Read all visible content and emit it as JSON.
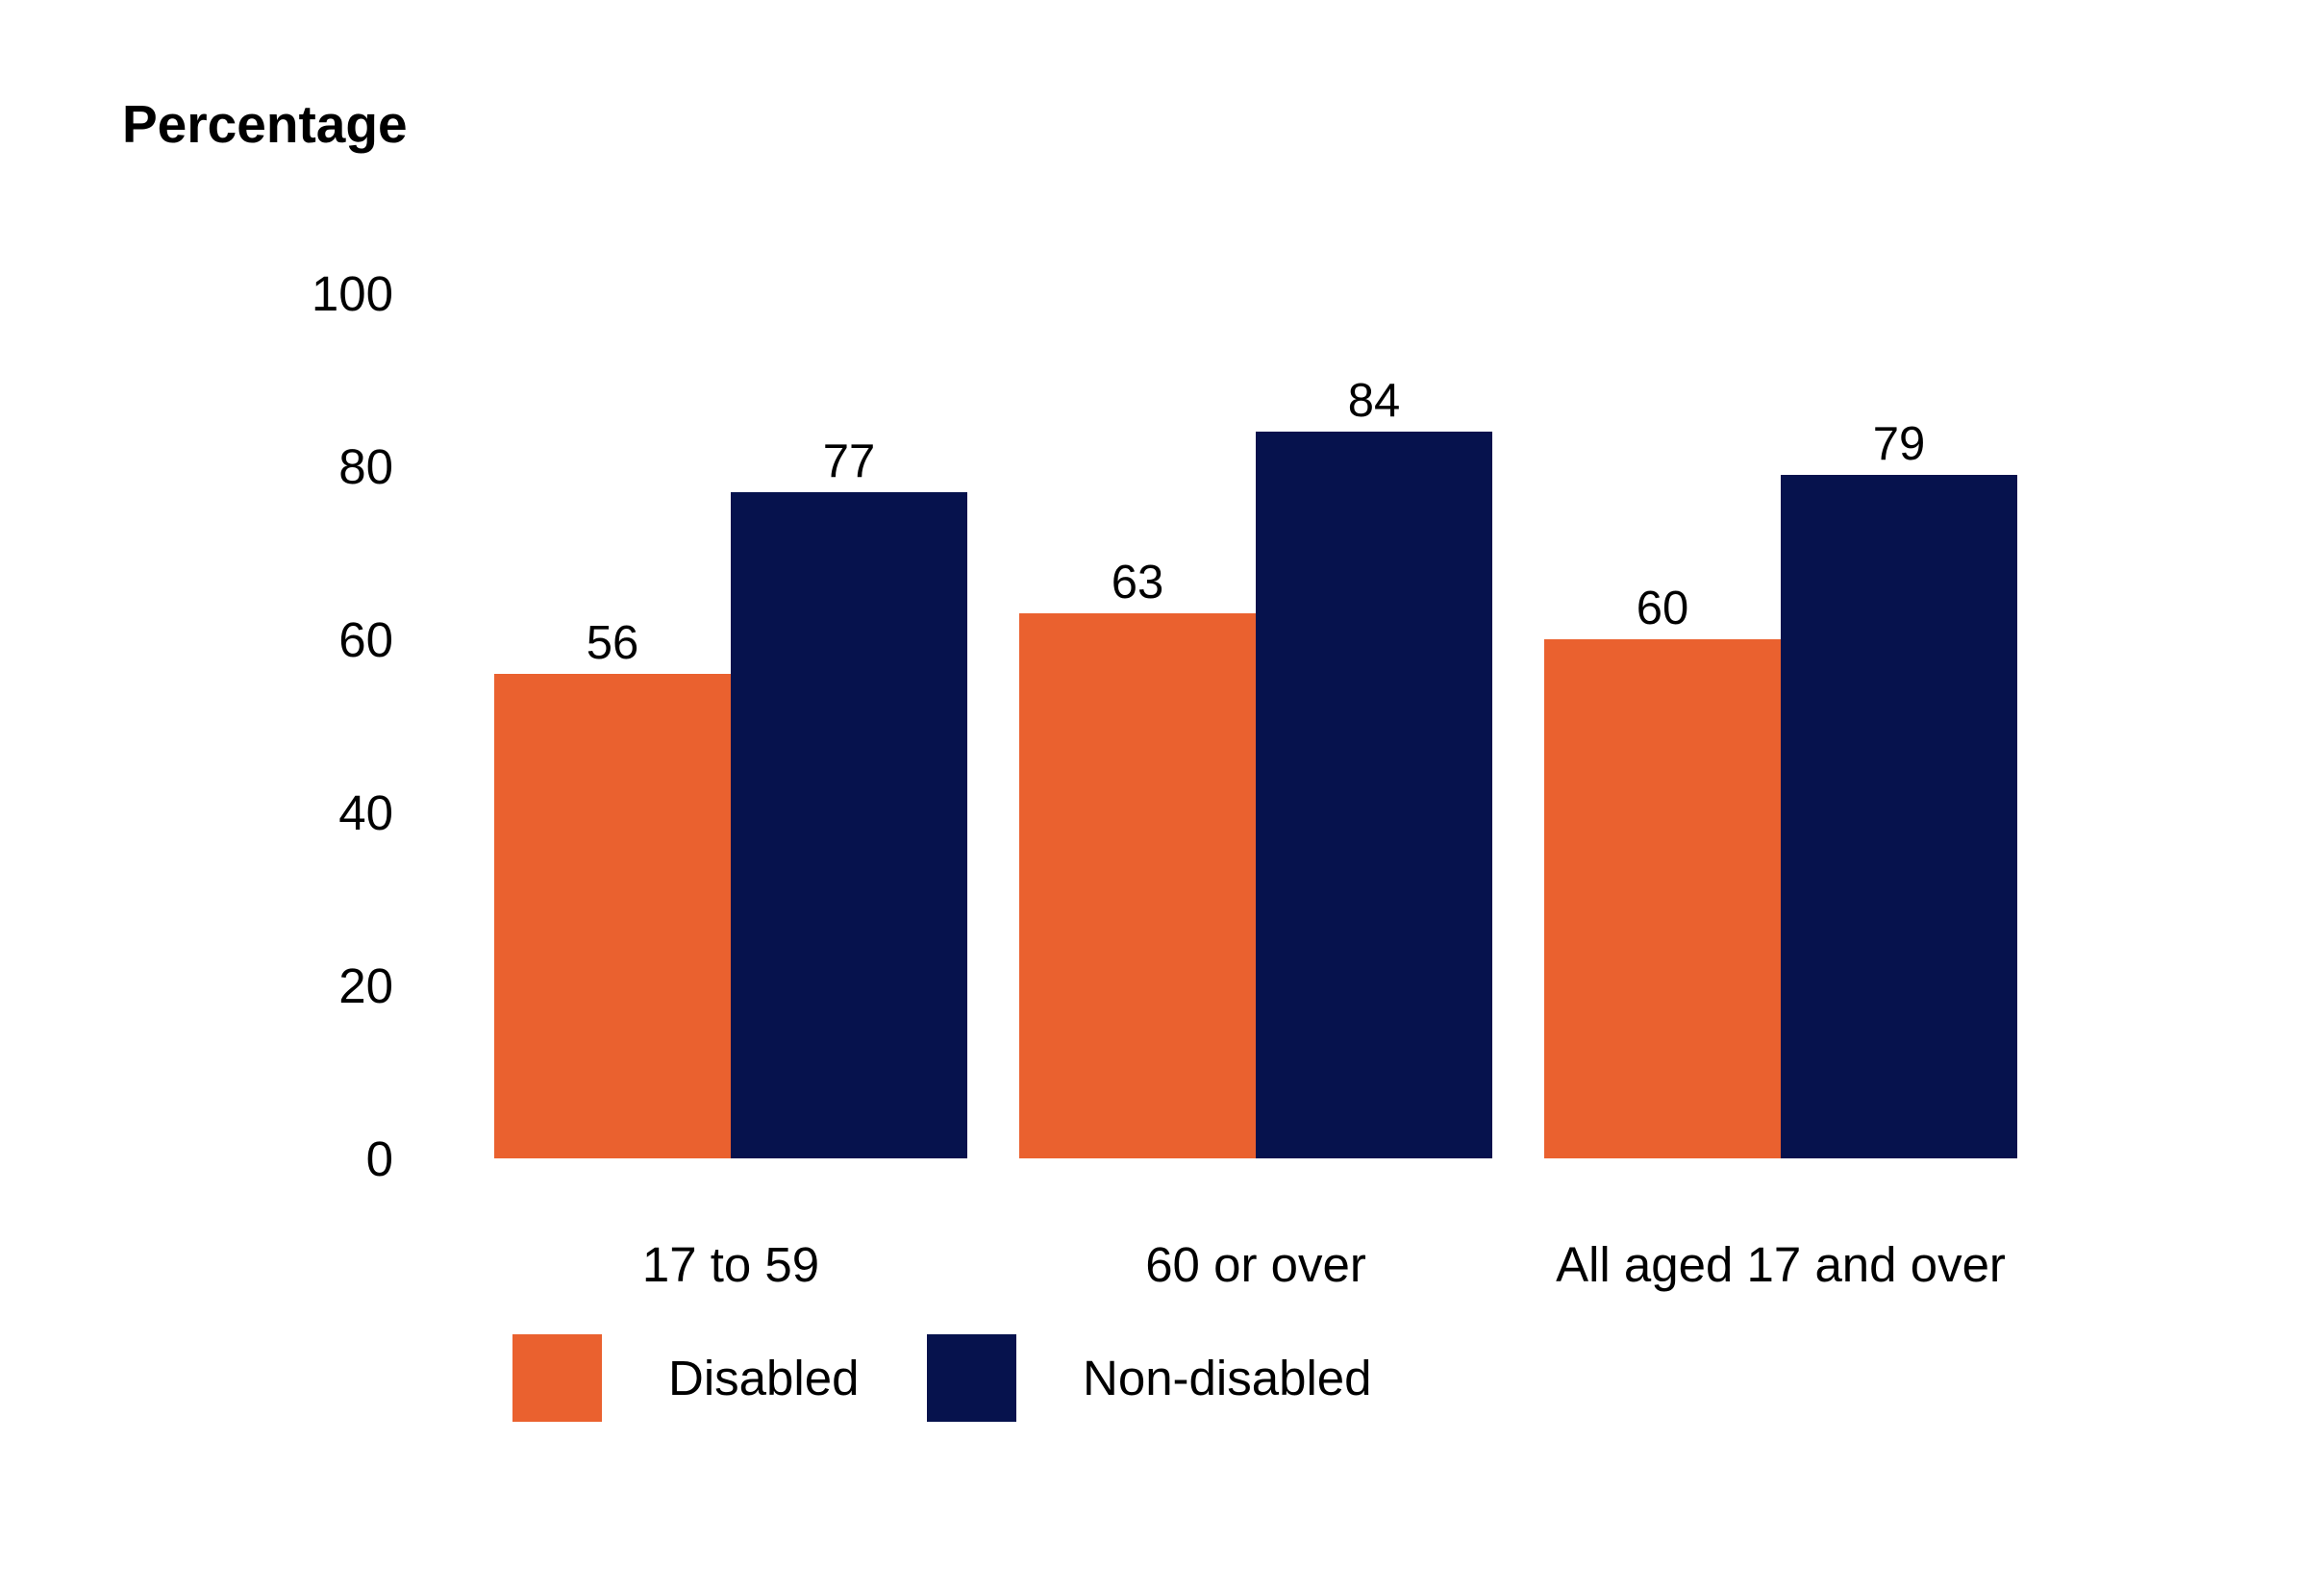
{
  "chart_data": {
    "type": "bar",
    "ylabel": "Percentage",
    "ylim": [
      0,
      100
    ],
    "yticks": [
      0,
      20,
      40,
      60,
      80,
      100
    ],
    "categories": [
      "17 to 59",
      "60 or over",
      "All aged 17 and over"
    ],
    "series": [
      {
        "name": "Disabled",
        "color": "#EA612F",
        "values": [
          56,
          63,
          60
        ]
      },
      {
        "name": "Non-disabled",
        "color": "#06124D",
        "values": [
          77,
          84,
          79
        ]
      }
    ],
    "grid": false,
    "legend": "bottom-left"
  }
}
